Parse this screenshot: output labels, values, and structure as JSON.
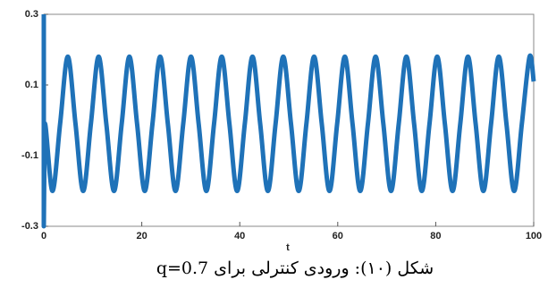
{
  "chart_data": {
    "type": "line",
    "x_label": "t",
    "caption": "شکل (۱۰): ورودی کنترلی برای q=0.7",
    "xlim": [
      0,
      100
    ],
    "xticks": [
      0,
      20,
      40,
      60,
      80,
      100
    ],
    "ylim": [
      -0.3,
      0.3
    ],
    "yticks": [
      -0.3,
      -0.1,
      0.1,
      0.3
    ],
    "grid": false,
    "series": [
      {
        "color": "#1f72b8",
        "x": [
          0,
          0,
          0.19,
          1.76,
          3.33,
          4.9,
          6.47,
          8.04,
          9.61,
          11.19,
          12.76,
          14.33,
          15.9,
          17.47,
          19.04,
          20.61,
          22.18,
          23.75,
          25.32,
          26.89,
          28.46,
          30.04,
          31.61,
          33.18,
          34.75,
          36.32,
          37.89,
          39.46,
          41.03,
          42.6,
          44.17,
          45.74,
          47.31,
          48.88,
          50.46,
          52.03,
          53.6,
          55.17,
          56.74,
          58.31,
          59.88,
          61.45,
          63.02,
          64.59,
          66.16,
          67.73,
          69.31,
          70.88,
          72.45,
          74.02,
          75.59,
          77.16,
          78.73,
          80.3,
          81.87,
          83.44,
          85.01,
          86.58,
          88.15,
          89.73,
          91.3,
          92.87,
          94.44,
          96.01,
          97.58,
          99.15,
          100
        ],
        "values": [
          0.3,
          -0.3,
          -0.01,
          -0.2,
          -0.01,
          0.18,
          -0.01,
          -0.2,
          -0.01,
          0.18,
          -0.01,
          -0.2,
          -0.01,
          0.18,
          -0.01,
          -0.2,
          -0.01,
          0.18,
          -0.01,
          -0.2,
          -0.01,
          0.18,
          -0.01,
          -0.2,
          -0.01,
          0.18,
          -0.01,
          -0.2,
          -0.01,
          0.18,
          -0.01,
          -0.2,
          -0.01,
          0.18,
          -0.01,
          -0.2,
          -0.01,
          0.18,
          -0.01,
          -0.2,
          -0.01,
          0.18,
          -0.01,
          -0.2,
          -0.01,
          0.18,
          -0.01,
          -0.2,
          -0.01,
          0.18,
          -0.01,
          -0.2,
          -0.01,
          0.18,
          -0.01,
          -0.2,
          -0.01,
          0.18,
          -0.01,
          -0.2,
          -0.01,
          0.18,
          -0.01,
          -0.2,
          -0.01,
          0.18,
          0.11
        ]
      }
    ]
  }
}
